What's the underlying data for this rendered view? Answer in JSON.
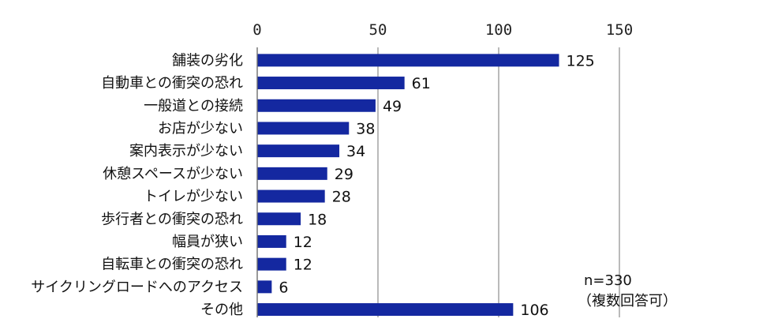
{
  "chart_data": {
    "type": "bar",
    "orientation": "horizontal",
    "categories": [
      "舗装の劣化",
      "自動車との衝突の恐れ",
      "一般道との接続",
      "お店が少ない",
      "案内表示が少ない",
      "休憩スペースが少ない",
      "トイレが少ない",
      "歩行者との衝突の恐れ",
      "幅員が狭い",
      "自転車との衝突の恐れ",
      "サイクリングロードへのアクセス",
      "その他"
    ],
    "values": [
      125,
      61,
      49,
      38,
      34,
      29,
      28,
      18,
      12,
      12,
      6,
      106
    ],
    "xlim": [
      0,
      150
    ],
    "xticks": [
      0,
      50,
      100,
      150
    ],
    "xtick_labels": [
      "0",
      "50",
      "100",
      "150"
    ],
    "grid": "vertical",
    "bar_color": "#1428a0",
    "title": "",
    "xlabel": "",
    "ylabel": ""
  },
  "note": {
    "sample": "n=330",
    "answer_type": "（複数回答可）"
  }
}
